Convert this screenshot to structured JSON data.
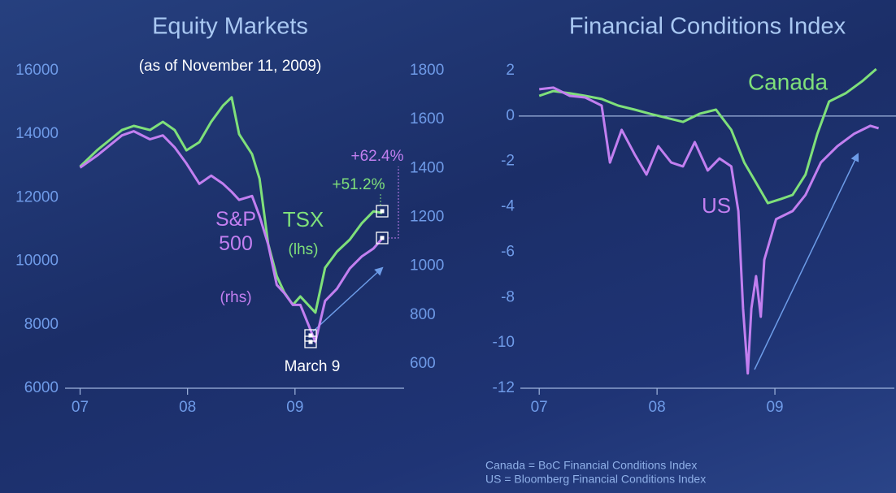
{
  "chart_data": [
    {
      "type": "line",
      "title": "Equity Markets",
      "subtitle": "(as of November 11, 2009)",
      "xlim": [
        2006.86,
        2010.0
      ],
      "xticks": [
        {
          "value": 2007,
          "label": "07"
        },
        {
          "value": 2008,
          "label": "08"
        },
        {
          "value": 2009,
          "label": "09"
        }
      ],
      "ylim": [
        6000,
        16000
      ],
      "yticks": [
        6000,
        8000,
        10000,
        12000,
        14000,
        16000
      ],
      "y2lim": [
        500,
        1800
      ],
      "y2ticks": [
        600,
        800,
        1000,
        1200,
        1400,
        1600,
        1800
      ],
      "series": [
        {
          "name": "TSX",
          "color": "#7fe07a",
          "axis": "y",
          "x": [
            2007.0,
            2007.16,
            2007.39,
            2007.5,
            2007.65,
            2007.77,
            2007.88,
            2007.99,
            2008.11,
            2008.22,
            2008.33,
            2008.41,
            2008.48,
            2008.6,
            2008.67,
            2008.75,
            2008.83,
            2008.9,
            2008.98,
            2009.05,
            2009.19,
            2009.28,
            2009.39,
            2009.51,
            2009.62,
            2009.73,
            2009.81
          ],
          "values": [
            12980,
            13500,
            14130,
            14260,
            14130,
            14390,
            14130,
            13490,
            13750,
            14390,
            14900,
            15160,
            14000,
            13370,
            12600,
            10550,
            9530,
            9020,
            8630,
            8890,
            8380,
            9790,
            10300,
            10680,
            11190,
            11570,
            11520
          ]
        },
        {
          "name": "S&P 500",
          "color": "#c27ff0",
          "axis": "y2",
          "x": [
            2007.0,
            2007.16,
            2007.39,
            2007.5,
            2007.65,
            2007.77,
            2007.88,
            2007.99,
            2008.11,
            2008.22,
            2008.33,
            2008.41,
            2008.48,
            2008.6,
            2008.67,
            2008.75,
            2008.83,
            2008.9,
            2008.98,
            2009.05,
            2009.19,
            2009.28,
            2009.39,
            2009.51,
            2009.62,
            2009.73,
            2009.81
          ],
          "values": [
            1403,
            1453,
            1535,
            1552,
            1519,
            1535,
            1486,
            1420,
            1337,
            1370,
            1337,
            1304,
            1271,
            1287,
            1205,
            1089,
            923,
            890,
            841,
            841,
            690,
            857,
            907,
            990,
            1039,
            1072,
            1112
          ]
        }
      ],
      "annotations": [
        "+62.4%",
        "+51.2%",
        "(lhs)",
        "(rhs)",
        "March 9"
      ]
    },
    {
      "type": "line",
      "title": "Financial Conditions Index",
      "xlim": [
        2006.84,
        2010.0
      ],
      "xticks": [
        {
          "value": 2007,
          "label": "07"
        },
        {
          "value": 2008,
          "label": "08"
        },
        {
          "value": 2009,
          "label": "09"
        }
      ],
      "ylim": [
        -12,
        2
      ],
      "yticks": [
        -12,
        -10,
        -8,
        -6,
        -4,
        -2,
        0,
        2
      ],
      "zero_line": true,
      "series": [
        {
          "name": "Canada",
          "color": "#7fe07a",
          "x": [
            2007.0,
            2007.12,
            2007.26,
            2007.39,
            2007.53,
            2007.67,
            2007.81,
            2007.94,
            2008.08,
            2008.22,
            2008.36,
            2008.5,
            2008.63,
            2008.74,
            2008.84,
            2008.94,
            2009.05,
            2009.15,
            2009.26,
            2009.36,
            2009.46,
            2009.6,
            2009.74,
            2009.86
          ],
          "values": [
            0.89,
            1.1,
            1.0,
            0.89,
            0.75,
            0.46,
            0.28,
            0.1,
            -0.08,
            -0.26,
            0.1,
            0.28,
            -0.61,
            -2.05,
            -2.94,
            -3.84,
            -3.66,
            -3.48,
            -2.58,
            -0.79,
            0.64,
            1.0,
            1.53,
            2.07
          ]
        },
        {
          "name": "US",
          "color": "#c27ff0",
          "x": [
            2007.0,
            2007.12,
            2007.26,
            2007.39,
            2007.53,
            2007.6,
            2007.7,
            2007.81,
            2007.91,
            2008.01,
            2008.12,
            2008.22,
            2008.32,
            2008.43,
            2008.53,
            2008.63,
            2008.69,
            2008.73,
            2008.77,
            2008.8,
            2008.84,
            2008.88,
            2008.91,
            2009.01,
            2009.15,
            2009.26,
            2009.39,
            2009.53,
            2009.67,
            2009.81,
            2009.88
          ],
          "values": [
            1.18,
            1.25,
            0.89,
            0.82,
            0.46,
            -2.05,
            -0.61,
            -1.69,
            -2.58,
            -1.33,
            -2.05,
            -2.22,
            -1.15,
            -2.4,
            -1.87,
            -2.22,
            -4.19,
            -8.49,
            -11.35,
            -8.49,
            -7.06,
            -8.85,
            -6.34,
            -4.55,
            -4.19,
            -3.48,
            -2.05,
            -1.33,
            -0.79,
            -0.43,
            -0.54
          ]
        }
      ],
      "annotations": [
        "Canada = BoC Financial Conditions Index",
        "US = Bloomberg Financial Conditions Index"
      ]
    }
  ]
}
